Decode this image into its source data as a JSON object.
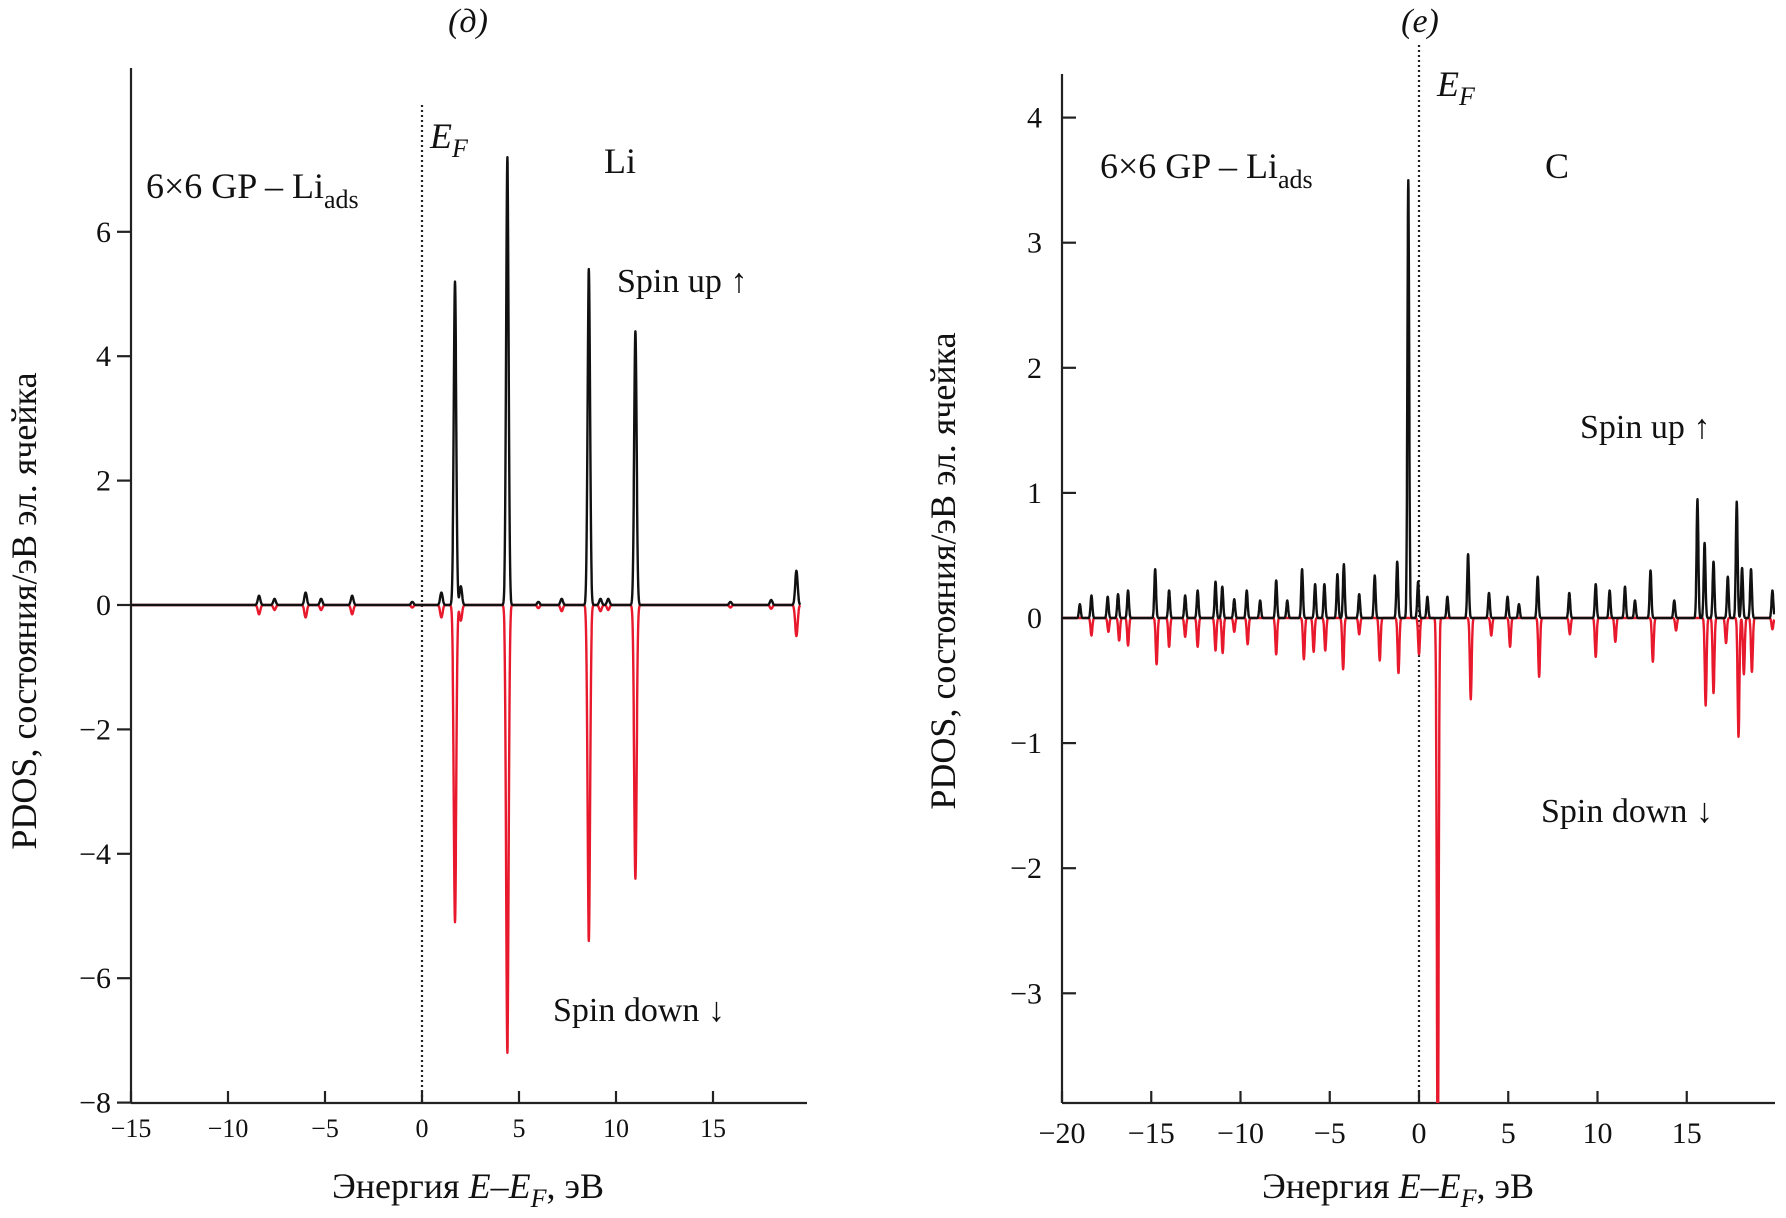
{
  "chart_data": [
    {
      "type": "line",
      "panel_label": "(д)",
      "element": "Li",
      "system": {
        "main": "6×6 GP – Li",
        "sub": "ads"
      },
      "fermi_label": {
        "main": "E",
        "sub": "F"
      },
      "xlabel": {
        "pre": "Энергия ",
        "e": "E",
        "dash": "–",
        "ef": "E",
        "sub": "F",
        "post": ", эВ"
      },
      "ylabel": "PDOS, состояния/эВ эл. ячейка",
      "xlim": [
        -15,
        19.5
      ],
      "ylim": [
        -8,
        8.6
      ],
      "xticks": [
        -15,
        -10,
        -5,
        0,
        5,
        10,
        15
      ],
      "xtick_labels": [
        "−15",
        "−10",
        "−5",
        "0",
        "5",
        "10",
        "15"
      ],
      "yticks": [
        -8,
        -6,
        -4,
        -2,
        0,
        2,
        4,
        6
      ],
      "ytick_labels": [
        "−8",
        "−6",
        "−4",
        "−2",
        "0",
        "2",
        "4",
        "6"
      ],
      "fermi_energy": 0,
      "grid": false,
      "annotations": {
        "spin_up": "Spin up ↑",
        "spin_down": "Spin down ↓"
      },
      "series": [
        {
          "name": "Spin up ↑",
          "color": "#111111",
          "peaks": [
            [
              -8.4,
              0.15
            ],
            [
              -7.6,
              0.1
            ],
            [
              -6.0,
              0.2
            ],
            [
              -5.2,
              0.1
            ],
            [
              -3.6,
              0.15
            ],
            [
              -0.5,
              0.05
            ],
            [
              1.0,
              0.2
            ],
            [
              1.7,
              5.2
            ],
            [
              2.0,
              0.3
            ],
            [
              4.4,
              7.2
            ],
            [
              6.0,
              0.05
            ],
            [
              7.2,
              0.1
            ],
            [
              8.6,
              5.4
            ],
            [
              9.2,
              0.1
            ],
            [
              9.6,
              0.1
            ],
            [
              11.0,
              4.4
            ],
            [
              15.9,
              0.05
            ],
            [
              18.0,
              0.08
            ],
            [
              19.3,
              0.55
            ]
          ]
        },
        {
          "name": "Spin down ↓",
          "color": "#e8192c",
          "peaks": [
            [
              -8.4,
              -0.15
            ],
            [
              -7.6,
              -0.08
            ],
            [
              -6.0,
              -0.2
            ],
            [
              -5.2,
              -0.08
            ],
            [
              -3.6,
              -0.15
            ],
            [
              -0.5,
              -0.04
            ],
            [
              1.0,
              -0.2
            ],
            [
              1.7,
              -5.1
            ],
            [
              2.0,
              -0.25
            ],
            [
              4.4,
              -7.2
            ],
            [
              6.0,
              -0.05
            ],
            [
              7.2,
              -0.1
            ],
            [
              8.6,
              -5.4
            ],
            [
              9.2,
              -0.1
            ],
            [
              9.6,
              -0.08
            ],
            [
              11.0,
              -4.4
            ],
            [
              15.9,
              -0.04
            ],
            [
              18.0,
              -0.06
            ],
            [
              19.3,
              -0.5
            ]
          ]
        }
      ]
    },
    {
      "type": "line",
      "panel_label": "(e)",
      "element": "C",
      "system": {
        "main": "6×6 GP – Li",
        "sub": "ads"
      },
      "fermi_label": {
        "main": "E",
        "sub": "F"
      },
      "xlabel": {
        "pre": "Энергия ",
        "e": "E",
        "dash": "–",
        "ef": "E",
        "sub": "F",
        "post": ", эВ"
      },
      "ylabel": "PDOS, состояния/эВ эл. ячейка",
      "xlim": [
        -20,
        19.9
      ],
      "ylim": [
        -3.87,
        4.35
      ],
      "xticks": [
        -20,
        -15,
        -10,
        -5,
        0,
        5,
        10,
        15
      ],
      "xtick_labels": [
        "−20",
        "−15",
        "−10",
        "−5",
        "0",
        "5",
        "10",
        "15"
      ],
      "yticks": [
        -3,
        -2,
        -1,
        0,
        1,
        2,
        3,
        4
      ],
      "ytick_labels": [
        "−3",
        "−2",
        "−1",
        "0",
        "1",
        "2",
        "3",
        "4"
      ],
      "fermi_energy": 0,
      "grid": false,
      "annotations": {
        "spin_up": "Spin up ↑",
        "spin_down": "Spin down ↓"
      },
      "series": [
        {
          "name": "Spin up ↑",
          "color": "#111111",
          "peaks": [
            [
              -19.0,
              0.11
            ],
            [
              -18.35,
              0.18
            ],
            [
              -17.44,
              0.17
            ],
            [
              -16.86,
              0.19
            ],
            [
              -16.3,
              0.22
            ],
            [
              -14.78,
              0.39
            ],
            [
              -14.0,
              0.22
            ],
            [
              -13.1,
              0.18
            ],
            [
              -12.4,
              0.22
            ],
            [
              -11.4,
              0.29
            ],
            [
              -11.02,
              0.25
            ],
            [
              -10.35,
              0.15
            ],
            [
              -9.65,
              0.22
            ],
            [
              -8.9,
              0.14
            ],
            [
              -8.0,
              0.3
            ],
            [
              -7.38,
              0.14
            ],
            [
              -6.55,
              0.39
            ],
            [
              -5.82,
              0.27
            ],
            [
              -5.3,
              0.27
            ],
            [
              -4.57,
              0.35
            ],
            [
              -4.21,
              0.43
            ],
            [
              -3.35,
              0.19
            ],
            [
              -2.48,
              0.34
            ],
            [
              -1.22,
              0.45
            ],
            [
              -0.6,
              3.5
            ],
            [
              -0.05,
              0.29
            ],
            [
              0.47,
              0.17
            ],
            [
              1.59,
              0.17
            ],
            [
              2.75,
              0.51
            ],
            [
              3.92,
              0.2
            ],
            [
              4.96,
              0.17
            ],
            [
              5.6,
              0.11
            ],
            [
              6.65,
              0.33
            ],
            [
              8.42,
              0.2
            ],
            [
              9.9,
              0.27
            ],
            [
              10.68,
              0.22
            ],
            [
              11.54,
              0.25
            ],
            [
              12.1,
              0.14
            ],
            [
              12.97,
              0.38
            ],
            [
              14.3,
              0.14
            ],
            [
              15.6,
              0.95
            ],
            [
              16.0,
              0.6
            ],
            [
              16.5,
              0.45
            ],
            [
              17.3,
              0.33
            ],
            [
              17.8,
              0.93
            ],
            [
              18.1,
              0.4
            ],
            [
              18.6,
              0.39
            ],
            [
              19.8,
              0.22
            ]
          ]
        },
        {
          "name": "Spin down ↓",
          "color": "#e8192c",
          "peaks": [
            [
              -18.35,
              -0.14
            ],
            [
              -17.4,
              -0.11
            ],
            [
              -16.8,
              -0.18
            ],
            [
              -16.3,
              -0.22
            ],
            [
              -14.7,
              -0.37
            ],
            [
              -14.0,
              -0.23
            ],
            [
              -13.1,
              -0.15
            ],
            [
              -12.4,
              -0.23
            ],
            [
              -11.4,
              -0.26
            ],
            [
              -11.0,
              -0.28
            ],
            [
              -10.35,
              -0.11
            ],
            [
              -9.6,
              -0.21
            ],
            [
              -8.0,
              -0.29
            ],
            [
              -6.45,
              -0.33
            ],
            [
              -5.9,
              -0.27
            ],
            [
              -5.25,
              -0.26
            ],
            [
              -4.25,
              -0.41
            ],
            [
              -3.35,
              -0.13
            ],
            [
              -2.2,
              -0.34
            ],
            [
              -1.15,
              -0.44
            ],
            [
              0.0,
              -0.29
            ],
            [
              1.05,
              -4.5
            ],
            [
              2.9,
              -0.65
            ],
            [
              4.05,
              -0.14
            ],
            [
              5.1,
              -0.23
            ],
            [
              6.73,
              -0.47
            ],
            [
              8.45,
              -0.13
            ],
            [
              9.9,
              -0.31
            ],
            [
              11.0,
              -0.19
            ],
            [
              13.1,
              -0.35
            ],
            [
              14.4,
              -0.1
            ],
            [
              16.06,
              -0.7
            ],
            [
              16.5,
              -0.6
            ],
            [
              17.2,
              -0.2
            ],
            [
              17.9,
              -0.95
            ],
            [
              18.2,
              -0.45
            ],
            [
              18.65,
              -0.43
            ],
            [
              19.8,
              -0.09
            ]
          ]
        }
      ]
    }
  ]
}
